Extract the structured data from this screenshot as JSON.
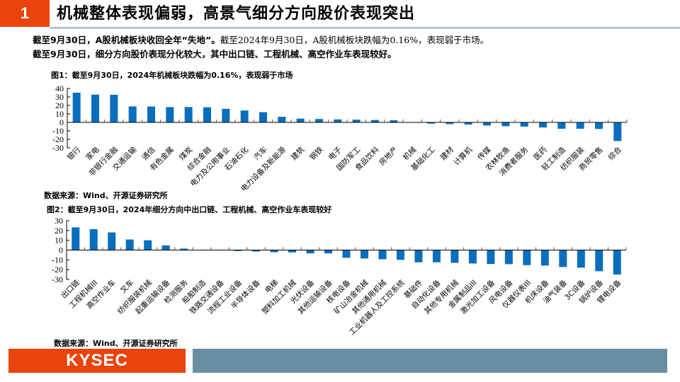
{
  "header": {
    "section_number": "1",
    "title": "机械整体表现偏弱，高景气细分方向股价表现突出"
  },
  "summary": {
    "line1_bold": "截至9月30日，A股机械板块收回全年“失地”。",
    "line1_normal": "截至2024年9月30日，A股机械板块跌幅为0.16%，表现弱于市场。",
    "line2_bold": "截至9月30日，细分方向股价表现分化较大，其中出口链、工程机械、高空作业车表现较好。"
  },
  "figure1": {
    "title": "图1：截至9月30日，2024年机械板块跌幅为0.16%，表现弱于市场",
    "source": "数据来源：Wind、开源证券研究所"
  },
  "figure2": {
    "title": "图2：截至9月30日，2024年细分方向中出口链、工程机械、高空作业车表现较好",
    "source": "数据来源：Wind、开源证券研究所"
  },
  "footer": {
    "logo_text": "KYSEC"
  },
  "colors": {
    "accent_orange": "#e8440c",
    "bar_blue": "#0a6ebd",
    "footer_bar": "#6a8fa0"
  },
  "chart_data": [
    {
      "type": "bar",
      "title": "图1：截至9月30日，2024年机械板块跌幅为0.16%，表现弱于市场",
      "xlabel": "",
      "ylabel": "",
      "ylim": [
        -30,
        40
      ],
      "yticks": [
        40,
        30,
        20,
        10,
        0,
        -10,
        -20,
        -30
      ],
      "grid": false,
      "legend": null,
      "categories": [
        "银行",
        "家电",
        "非银行金融",
        "交通运输",
        "通信",
        "有色金属",
        "煤炭",
        "综合金融",
        "电力及公用事业",
        "石油石化",
        "汽车",
        "电力设备及新能源",
        "建筑",
        "钢铁",
        "电子",
        "国防军工",
        "食品饮料",
        "房地产",
        "机械",
        "基础化工",
        "建材",
        "计算机",
        "传媒",
        "农林牧渔",
        "消费者服务",
        "医药",
        "轻工制造",
        "纺织服装",
        "商贸零售",
        "综合"
      ],
      "values": [
        35.0,
        32.7,
        32.5,
        18.8,
        18.7,
        18.0,
        18.0,
        17.8,
        16.0,
        14.0,
        12.0,
        6.6,
        4.4,
        4.0,
        3.5,
        3.2,
        2.8,
        2.5,
        -0.16,
        -1.5,
        -2.0,
        -2.5,
        -3.7,
        -4.5,
        -5.0,
        -6.0,
        -7.5,
        -7.5,
        -7.7,
        -22.0
      ]
    },
    {
      "type": "bar",
      "title": "图2：截至9月30日，2024年细分方向中出口链、工程机械、高空作业车表现较好",
      "xlabel": "",
      "ylabel": "",
      "ylim": [
        -30,
        30
      ],
      "yticks": [
        30,
        20,
        10,
        0,
        -10,
        -20,
        -30
      ],
      "grid": false,
      "legend": null,
      "categories": [
        "出口链",
        "工程机械III",
        "高空作业车",
        "叉车",
        "纺织服装机械",
        "起重运输设备",
        "检测服务",
        "船舶制造",
        "铁路交通设备",
        "流程工业设备",
        "半导体设备",
        "电梯",
        "塑料加工机械",
        "光伏设备",
        "其他运输设备",
        "核电设备",
        "矿山冶金机械",
        "其他通用机械",
        "工业机器人及工控系统",
        "基础件",
        "自动化设备",
        "其他专用机械",
        "金属制品III",
        "激光加工设备",
        "风电设备",
        "仪器仪表III",
        "机床设备",
        "油气装备",
        "3C设备",
        "锅炉设备",
        "锂电设备"
      ],
      "values": [
        23.2,
        21.3,
        18.0,
        10.8,
        10.0,
        4.8,
        1.5,
        0.3,
        0.2,
        -1.0,
        -1.5,
        -2.2,
        -2.4,
        -3.4,
        -3.4,
        -7.9,
        -8.6,
        -9.4,
        -10.0,
        -12.5,
        -12.5,
        -13.0,
        -13.7,
        -14.2,
        -14.4,
        -15.4,
        -15.8,
        -17.3,
        -18.0,
        -21.6,
        -25.0
      ]
    }
  ]
}
